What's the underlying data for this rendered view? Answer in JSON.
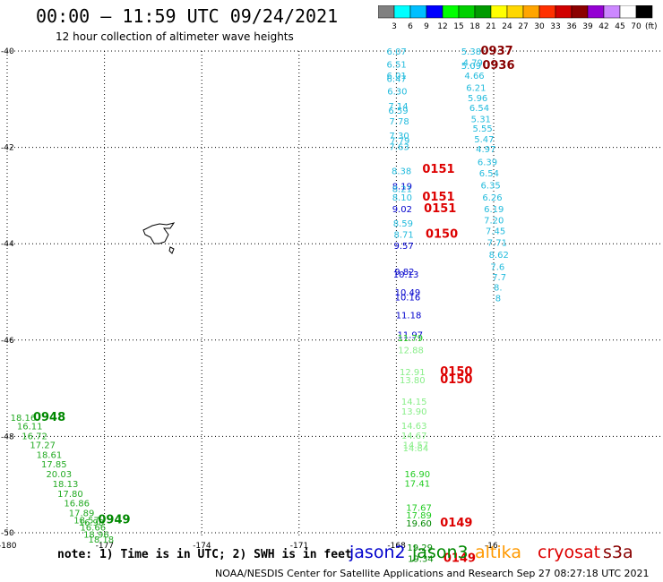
{
  "title": "00:00 — 11:59 UTC 09/24/2021",
  "subtitle": "12 hour collection of altimeter wave heights",
  "note": "note: 1) Time is in UTC; 2) SWH is in feet",
  "credit": "NOAA/NESDIS Center for Satellite Applications and Research    Sep 27 08:27:18 UTC 2021",
  "colorbar": {
    "unit": "(ft)",
    "colors": [
      "#808080",
      "#00ffff",
      "#00bfff",
      "#0000ff",
      "#00ff00",
      "#00d000",
      "#009a00",
      "#ffff00",
      "#ffd700",
      "#ffa500",
      "#ff3000",
      "#d00000",
      "#8b0000",
      "#9400d3",
      "#cc88ff",
      "#ffffff",
      "#000000"
    ],
    "labels": [
      "3",
      "6",
      "9",
      "12",
      "15",
      "18",
      "21",
      "24",
      "27",
      "30",
      "33",
      "36",
      "39",
      "42",
      "45",
      "70"
    ]
  },
  "axes": {
    "lat_labels": [
      "-40",
      "-42",
      "-44",
      "-46",
      "-48",
      "-50"
    ],
    "lon_labels": [
      "-180",
      "-177",
      "-174",
      "-171",
      "-168",
      "-16"
    ]
  },
  "satellites": [
    {
      "name": "jason2",
      "color": "#0000cc"
    },
    {
      "name": "jason3",
      "color": "#008800"
    },
    {
      "name": "altika",
      "color": "#ff9900"
    },
    {
      "name": "cryosat",
      "color": "#dd0000"
    },
    {
      "name": "s3a",
      "color": "#880000"
    }
  ],
  "labels": [
    {
      "t": "6.07",
      "lon": -168.3,
      "lat": -40.0,
      "c": "#22bbdd"
    },
    {
      "t": "6.51",
      "lon": -168.3,
      "lat": -40.27,
      "c": "#22bbdd"
    },
    {
      "t": "6.01",
      "lon": -168.3,
      "lat": -40.5,
      "c": "#22bbdd"
    },
    {
      "t": "6.47",
      "lon": -168.3,
      "lat": -40.57,
      "c": "#22bbdd"
    },
    {
      "t": "6.30",
      "lon": -168.28,
      "lat": -40.83,
      "c": "#22bbdd"
    },
    {
      "t": "7.14",
      "lon": -168.25,
      "lat": -41.13,
      "c": "#22bbdd"
    },
    {
      "t": "6.59",
      "lon": -168.25,
      "lat": -41.23,
      "c": "#22bbdd"
    },
    {
      "t": "7.78",
      "lon": -168.22,
      "lat": -41.45,
      "c": "#22bbdd"
    },
    {
      "t": "7.30",
      "lon": -168.22,
      "lat": -41.75,
      "c": "#22bbdd"
    },
    {
      "t": "7.79",
      "lon": -168.2,
      "lat": -41.85,
      "c": "#22bbdd"
    },
    {
      "t": "7.63",
      "lon": -168.22,
      "lat": -41.98,
      "c": "#22bbdd"
    },
    {
      "t": "8.38",
      "lon": -168.15,
      "lat": -42.48,
      "c": "#22bbdd"
    },
    {
      "t": "8.19",
      "lon": -168.13,
      "lat": -42.8,
      "c": "#0000cc"
    },
    {
      "t": "8.21",
      "lon": -168.13,
      "lat": -42.85,
      "c": "#22bbdd"
    },
    {
      "t": "8.10",
      "lon": -168.13,
      "lat": -43.03,
      "c": "#22bbdd"
    },
    {
      "t": "9.02",
      "lon": -168.13,
      "lat": -43.27,
      "c": "#0000cc"
    },
    {
      "t": "8.59",
      "lon": -168.1,
      "lat": -43.57,
      "c": "#22bbdd"
    },
    {
      "t": "8.71",
      "lon": -168.08,
      "lat": -43.8,
      "c": "#22bbdd"
    },
    {
      "t": "9.57",
      "lon": -168.08,
      "lat": -44.03,
      "c": "#0000cc"
    },
    {
      "t": "9.82",
      "lon": -168.06,
      "lat": -44.57,
      "c": "#0000cc"
    },
    {
      "t": "10.13",
      "lon": -168.1,
      "lat": -44.63,
      "c": "#0000cc"
    },
    {
      "t": "10.49",
      "lon": -168.05,
      "lat": -45.0,
      "c": "#0000cc"
    },
    {
      "t": "10.16",
      "lon": -168.05,
      "lat": -45.1,
      "c": "#0000cc"
    },
    {
      "t": "11.18",
      "lon": -168.02,
      "lat": -45.47,
      "c": "#0000cc"
    },
    {
      "t": "11.97",
      "lon": -167.97,
      "lat": -45.88,
      "c": "#0000cc"
    },
    {
      "t": "11.79",
      "lon": -167.97,
      "lat": -45.95,
      "c": "#22cc22"
    },
    {
      "t": "12.88",
      "lon": -167.95,
      "lat": -46.2,
      "c": "#88ee88"
    },
    {
      "t": "12.91",
      "lon": -167.9,
      "lat": -46.65,
      "c": "#88ee88"
    },
    {
      "t": "13.80",
      "lon": -167.9,
      "lat": -46.82,
      "c": "#88ee88"
    },
    {
      "t": "14.15",
      "lon": -167.85,
      "lat": -47.27,
      "c": "#88ee88"
    },
    {
      "t": "13.90",
      "lon": -167.85,
      "lat": -47.47,
      "c": "#88ee88"
    },
    {
      "t": "14.63",
      "lon": -167.85,
      "lat": -47.77,
      "c": "#88ee88"
    },
    {
      "t": "14.67",
      "lon": -167.85,
      "lat": -47.97,
      "c": "#88ee88"
    },
    {
      "t": "14.57",
      "lon": -167.8,
      "lat": -48.17,
      "c": "#88ee88"
    },
    {
      "t": "14.84",
      "lon": -167.8,
      "lat": -48.23,
      "c": "#88ee88"
    },
    {
      "t": "16.90",
      "lon": -167.75,
      "lat": -48.77,
      "c": "#22cc22"
    },
    {
      "t": "17.41",
      "lon": -167.75,
      "lat": -48.97,
      "c": "#22cc22"
    },
    {
      "t": "17.67",
      "lon": -167.7,
      "lat": -49.47,
      "c": "#22cc22"
    },
    {
      "t": "17.89",
      "lon": -167.7,
      "lat": -49.63,
      "c": "#22cc22"
    },
    {
      "t": "19.60",
      "lon": -167.7,
      "lat": -49.8,
      "c": "#008800"
    },
    {
      "t": "19.29",
      "lon": -167.67,
      "lat": -50.3,
      "c": "#008800"
    },
    {
      "t": "19.34",
      "lon": -167.65,
      "lat": -50.53,
      "c": "#008800"
    },
    {
      "t": "0151",
      "lon": -167.2,
      "lat": -42.45,
      "c": "#dd0000",
      "fs": 13
    },
    {
      "t": "0151",
      "lon": -167.2,
      "lat": -43.03,
      "c": "#dd0000",
      "fs": 13
    },
    {
      "t": "0151",
      "lon": -167.15,
      "lat": -43.27,
      "c": "#dd0000",
      "fs": 13
    },
    {
      "t": "0150",
      "lon": -167.1,
      "lat": -43.8,
      "c": "#dd0000",
      "fs": 13
    },
    {
      "t": "0150",
      "lon": -166.65,
      "lat": -46.65,
      "c": "#dd0000",
      "fs": 13
    },
    {
      "t": "0150",
      "lon": -166.65,
      "lat": -46.82,
      "c": "#dd0000",
      "fs": 13
    },
    {
      "t": "0149",
      "lon": -166.65,
      "lat": -49.8,
      "c": "#dd0000",
      "fs": 13
    },
    {
      "t": "0149",
      "lon": -166.55,
      "lat": -50.53,
      "c": "#dd0000",
      "fs": 13
    },
    {
      "t": "5.38",
      "lon": -166.0,
      "lat": -40.0,
      "c": "#22bbdd"
    },
    {
      "t": "4.79",
      "lon": -165.95,
      "lat": -40.23,
      "c": "#22bbdd"
    },
    {
      "t": "5.09",
      "lon": -166.0,
      "lat": -40.3,
      "c": "#22bbdd"
    },
    {
      "t": "4.66",
      "lon": -165.9,
      "lat": -40.5,
      "c": "#22bbdd"
    },
    {
      "t": "6.21",
      "lon": -165.85,
      "lat": -40.75,
      "c": "#22bbdd"
    },
    {
      "t": "5.96",
      "lon": -165.8,
      "lat": -40.97,
      "c": "#22bbdd"
    },
    {
      "t": "6.54",
      "lon": -165.75,
      "lat": -41.17,
      "c": "#22bbdd"
    },
    {
      "t": "5.31",
      "lon": -165.7,
      "lat": -41.4,
      "c": "#22bbdd"
    },
    {
      "t": "5.55",
      "lon": -165.65,
      "lat": -41.6,
      "c": "#22bbdd"
    },
    {
      "t": "5.47",
      "lon": -165.6,
      "lat": -41.82,
      "c": "#22bbdd"
    },
    {
      "t": "4.97",
      "lon": -165.55,
      "lat": -42.03,
      "c": "#22bbdd"
    },
    {
      "t": "6.39",
      "lon": -165.5,
      "lat": -42.3,
      "c": "#22bbdd"
    },
    {
      "t": "6.54",
      "lon": -165.45,
      "lat": -42.53,
      "c": "#22bbdd"
    },
    {
      "t": "6.35",
      "lon": -165.4,
      "lat": -42.78,
      "c": "#22bbdd"
    },
    {
      "t": "6.26",
      "lon": -165.35,
      "lat": -43.03,
      "c": "#22bbdd"
    },
    {
      "t": "6.19",
      "lon": -165.3,
      "lat": -43.27,
      "c": "#22bbdd"
    },
    {
      "t": "7.20",
      "lon": -165.3,
      "lat": -43.5,
      "c": "#22bbdd"
    },
    {
      "t": "7.45",
      "lon": -165.25,
      "lat": -43.73,
      "c": "#22bbdd"
    },
    {
      "t": "7.71",
      "lon": -165.2,
      "lat": -43.97,
      "c": "#22bbdd"
    },
    {
      "t": "8.62",
      "lon": -165.15,
      "lat": -44.22,
      "c": "#22bbdd"
    },
    {
      "t": "7.6",
      "lon": -165.1,
      "lat": -44.47,
      "c": "#22bbdd"
    },
    {
      "t": "7.7",
      "lon": -165.05,
      "lat": -44.68,
      "c": "#22bbdd"
    },
    {
      "t": "8.",
      "lon": -165.0,
      "lat": -44.9,
      "c": "#22bbdd"
    },
    {
      "t": "8",
      "lon": -164.95,
      "lat": -45.12,
      "c": "#22bbdd"
    },
    {
      "t": "0937",
      "lon": -165.4,
      "lat": -40.0,
      "c": "#880000",
      "fs": 13
    },
    {
      "t": "0936",
      "lon": -165.35,
      "lat": -40.3,
      "c": "#880000",
      "fs": 13
    },
    {
      "t": "18.16",
      "lon": -179.9,
      "lat": -47.6,
      "c": "#22aa22"
    },
    {
      "t": "16.11",
      "lon": -179.7,
      "lat": -47.78,
      "c": "#22aa22"
    },
    {
      "t": "16.72",
      "lon": -179.55,
      "lat": -47.98,
      "c": "#22aa22"
    },
    {
      "t": "17.27",
      "lon": -179.3,
      "lat": -48.17,
      "c": "#22aa22"
    },
    {
      "t": "18.61",
      "lon": -179.1,
      "lat": -48.37,
      "c": "#22aa22"
    },
    {
      "t": "17.85",
      "lon": -178.95,
      "lat": -48.57,
      "c": "#22aa22"
    },
    {
      "t": "20.03",
      "lon": -178.8,
      "lat": -48.77,
      "c": "#22aa22"
    },
    {
      "t": "18.13",
      "lon": -178.6,
      "lat": -48.98,
      "c": "#22aa22"
    },
    {
      "t": "17.80",
      "lon": -178.45,
      "lat": -49.18,
      "c": "#22aa22"
    },
    {
      "t": "16.86",
      "lon": -178.25,
      "lat": -49.38,
      "c": "#22aa22"
    },
    {
      "t": "17.89",
      "lon": -178.1,
      "lat": -49.58,
      "c": "#22aa22"
    },
    {
      "t": "18.57",
      "lon": -177.95,
      "lat": -49.73,
      "c": "#22aa22"
    },
    {
      "t": "16.98",
      "lon": -177.8,
      "lat": -49.78,
      "c": "#22aa22"
    },
    {
      "t": "16.66",
      "lon": -177.75,
      "lat": -49.88,
      "c": "#22aa22"
    },
    {
      "t": "18.96",
      "lon": -177.65,
      "lat": -50.03,
      "c": "#22aa22"
    },
    {
      "t": "18.18",
      "lon": -177.5,
      "lat": -50.13,
      "c": "#22aa22"
    },
    {
      "t": "0948",
      "lon": -179.2,
      "lat": -47.6,
      "c": "#008800",
      "fs": 13
    },
    {
      "t": "0949",
      "lon": -177.2,
      "lat": -49.73,
      "c": "#008800",
      "fs": 13
    }
  ]
}
